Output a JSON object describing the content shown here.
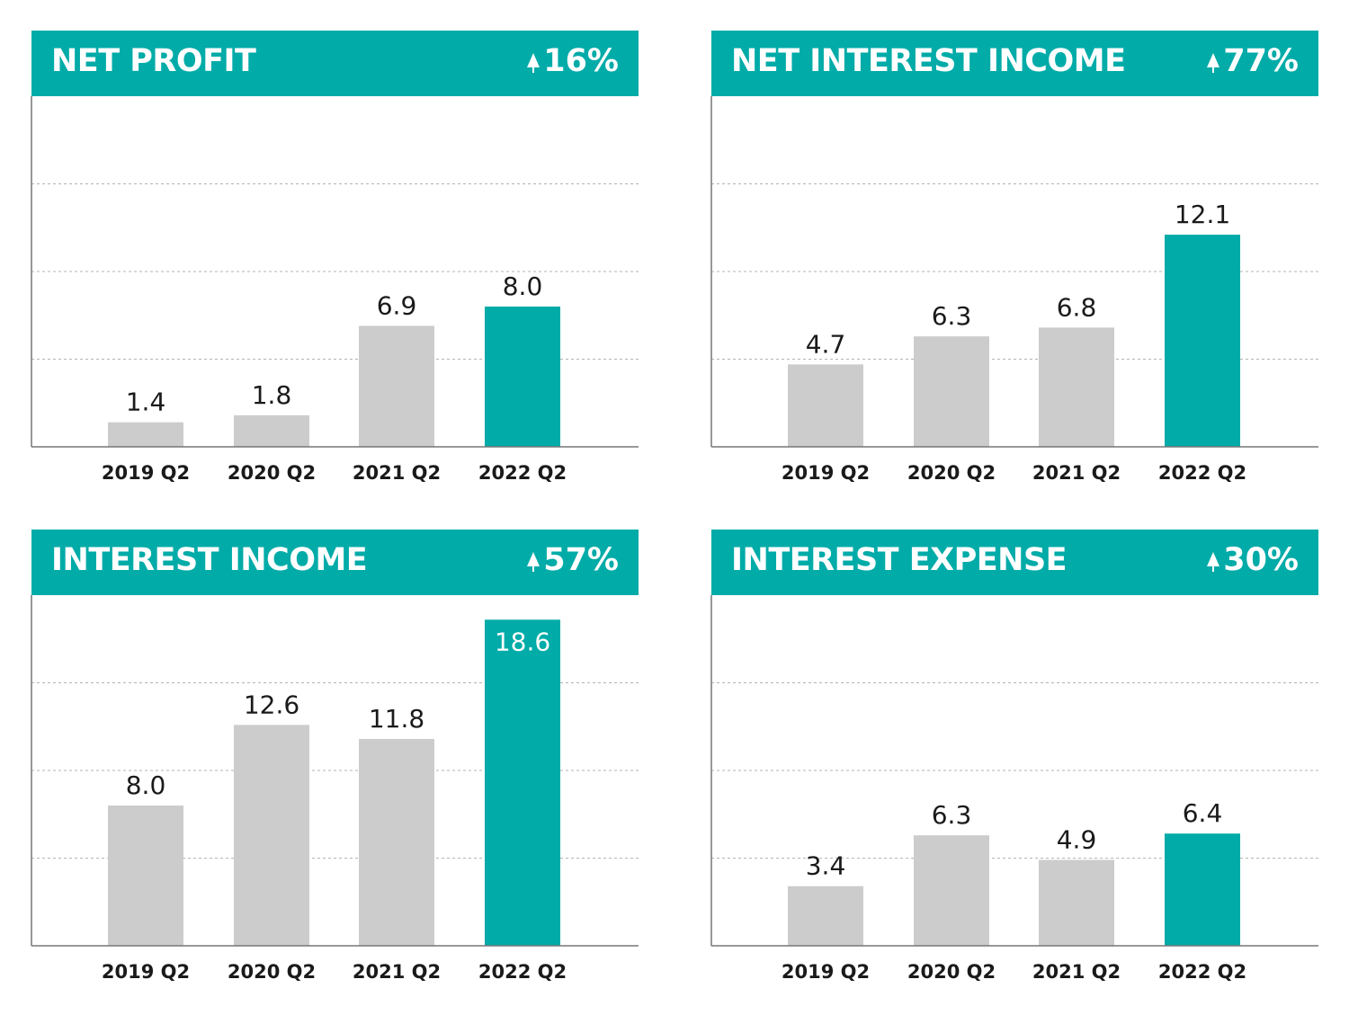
{
  "colors": {
    "accent": "#00aba8",
    "bar_previous": "#cccccc",
    "bar_current": "#00aba8",
    "grid": "#b3b3b3",
    "axis": "#777777"
  },
  "icons": {
    "change_arrow": "up-arrow-icon"
  },
  "chart_data": [
    {
      "type": "bar",
      "title": "NET PROFIT",
      "change": "16%",
      "categories": [
        "2019 Q2",
        "2020 Q2",
        "2021 Q2",
        "2022 Q2"
      ],
      "values": [
        1.4,
        1.8,
        6.9,
        8.0
      ],
      "value_labels": [
        "1.4",
        "1.8",
        "6.9",
        "8.0"
      ],
      "ylim": [
        0,
        20
      ],
      "grid": true,
      "highlight_index": 3
    },
    {
      "type": "bar",
      "title": "NET INTEREST INCOME",
      "change": "77%",
      "categories": [
        "2019 Q2",
        "2020 Q2",
        "2021 Q2",
        "2022 Q2"
      ],
      "values": [
        4.7,
        6.3,
        6.8,
        12.1
      ],
      "value_labels": [
        "4.7",
        "6.3",
        "6.8",
        "12.1"
      ],
      "ylim": [
        0,
        20
      ],
      "grid": true,
      "highlight_index": 3
    },
    {
      "type": "bar",
      "title": "INTEREST INCOME",
      "change": "57%",
      "categories": [
        "2019 Q2",
        "2020 Q2",
        "2021 Q2",
        "2022 Q2"
      ],
      "values": [
        8.0,
        12.6,
        11.8,
        18.6
      ],
      "value_labels": [
        "8.0",
        "12.6",
        "11.8",
        "18.6"
      ],
      "ylim": [
        0,
        20
      ],
      "grid": true,
      "highlight_index": 3
    },
    {
      "type": "bar",
      "title": "INTEREST EXPENSE",
      "change": "30%",
      "categories": [
        "2019 Q2",
        "2020 Q2",
        "2021 Q2",
        "2022 Q2"
      ],
      "values": [
        3.4,
        6.3,
        4.9,
        6.4
      ],
      "value_labels": [
        "3.4",
        "6.3",
        "4.9",
        "6.4"
      ],
      "ylim": [
        0,
        20
      ],
      "grid": true,
      "highlight_index": 3
    }
  ]
}
